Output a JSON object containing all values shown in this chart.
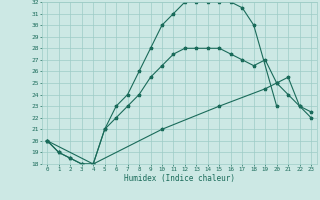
{
  "xlabel": "Humidex (Indice chaleur)",
  "xlim": [
    -0.5,
    23.5
  ],
  "ylim": [
    18,
    32
  ],
  "xticks": [
    0,
    1,
    2,
    3,
    4,
    5,
    6,
    7,
    8,
    9,
    10,
    11,
    12,
    13,
    14,
    15,
    16,
    17,
    18,
    19,
    20,
    21,
    22,
    23
  ],
  "yticks": [
    18,
    19,
    20,
    21,
    22,
    23,
    24,
    25,
    26,
    27,
    28,
    29,
    30,
    31,
    32
  ],
  "bg_color": "#cce8e4",
  "grid_color": "#9dccc6",
  "line_color": "#1a6b5a",
  "line1_x": [
    0,
    1,
    2,
    3,
    4,
    5,
    6,
    7,
    8,
    9,
    10,
    11,
    12,
    13,
    14,
    15,
    16,
    17,
    18,
    20
  ],
  "line1_y": [
    20,
    19,
    18.5,
    18,
    18,
    21,
    23,
    24,
    26,
    28,
    30,
    31,
    32,
    32,
    32,
    32,
    32,
    31.5,
    30,
    23
  ],
  "line2_x": [
    0,
    4,
    5,
    6,
    7,
    8,
    9,
    10,
    11,
    12,
    13,
    14,
    15,
    16,
    17,
    18,
    19,
    20,
    21,
    22,
    23
  ],
  "line2_y": [
    20,
    18,
    21,
    22,
    23,
    24,
    25.5,
    26.5,
    27.5,
    28,
    28,
    28,
    28,
    27.5,
    27,
    26.5,
    27,
    25,
    24,
    23,
    22.5
  ],
  "line3_x": [
    0,
    1,
    2,
    3,
    4,
    10,
    15,
    19,
    20,
    21,
    22,
    23
  ],
  "line3_y": [
    20,
    19,
    18.5,
    18,
    18,
    21,
    23,
    24.5,
    25,
    25.5,
    23,
    22
  ]
}
